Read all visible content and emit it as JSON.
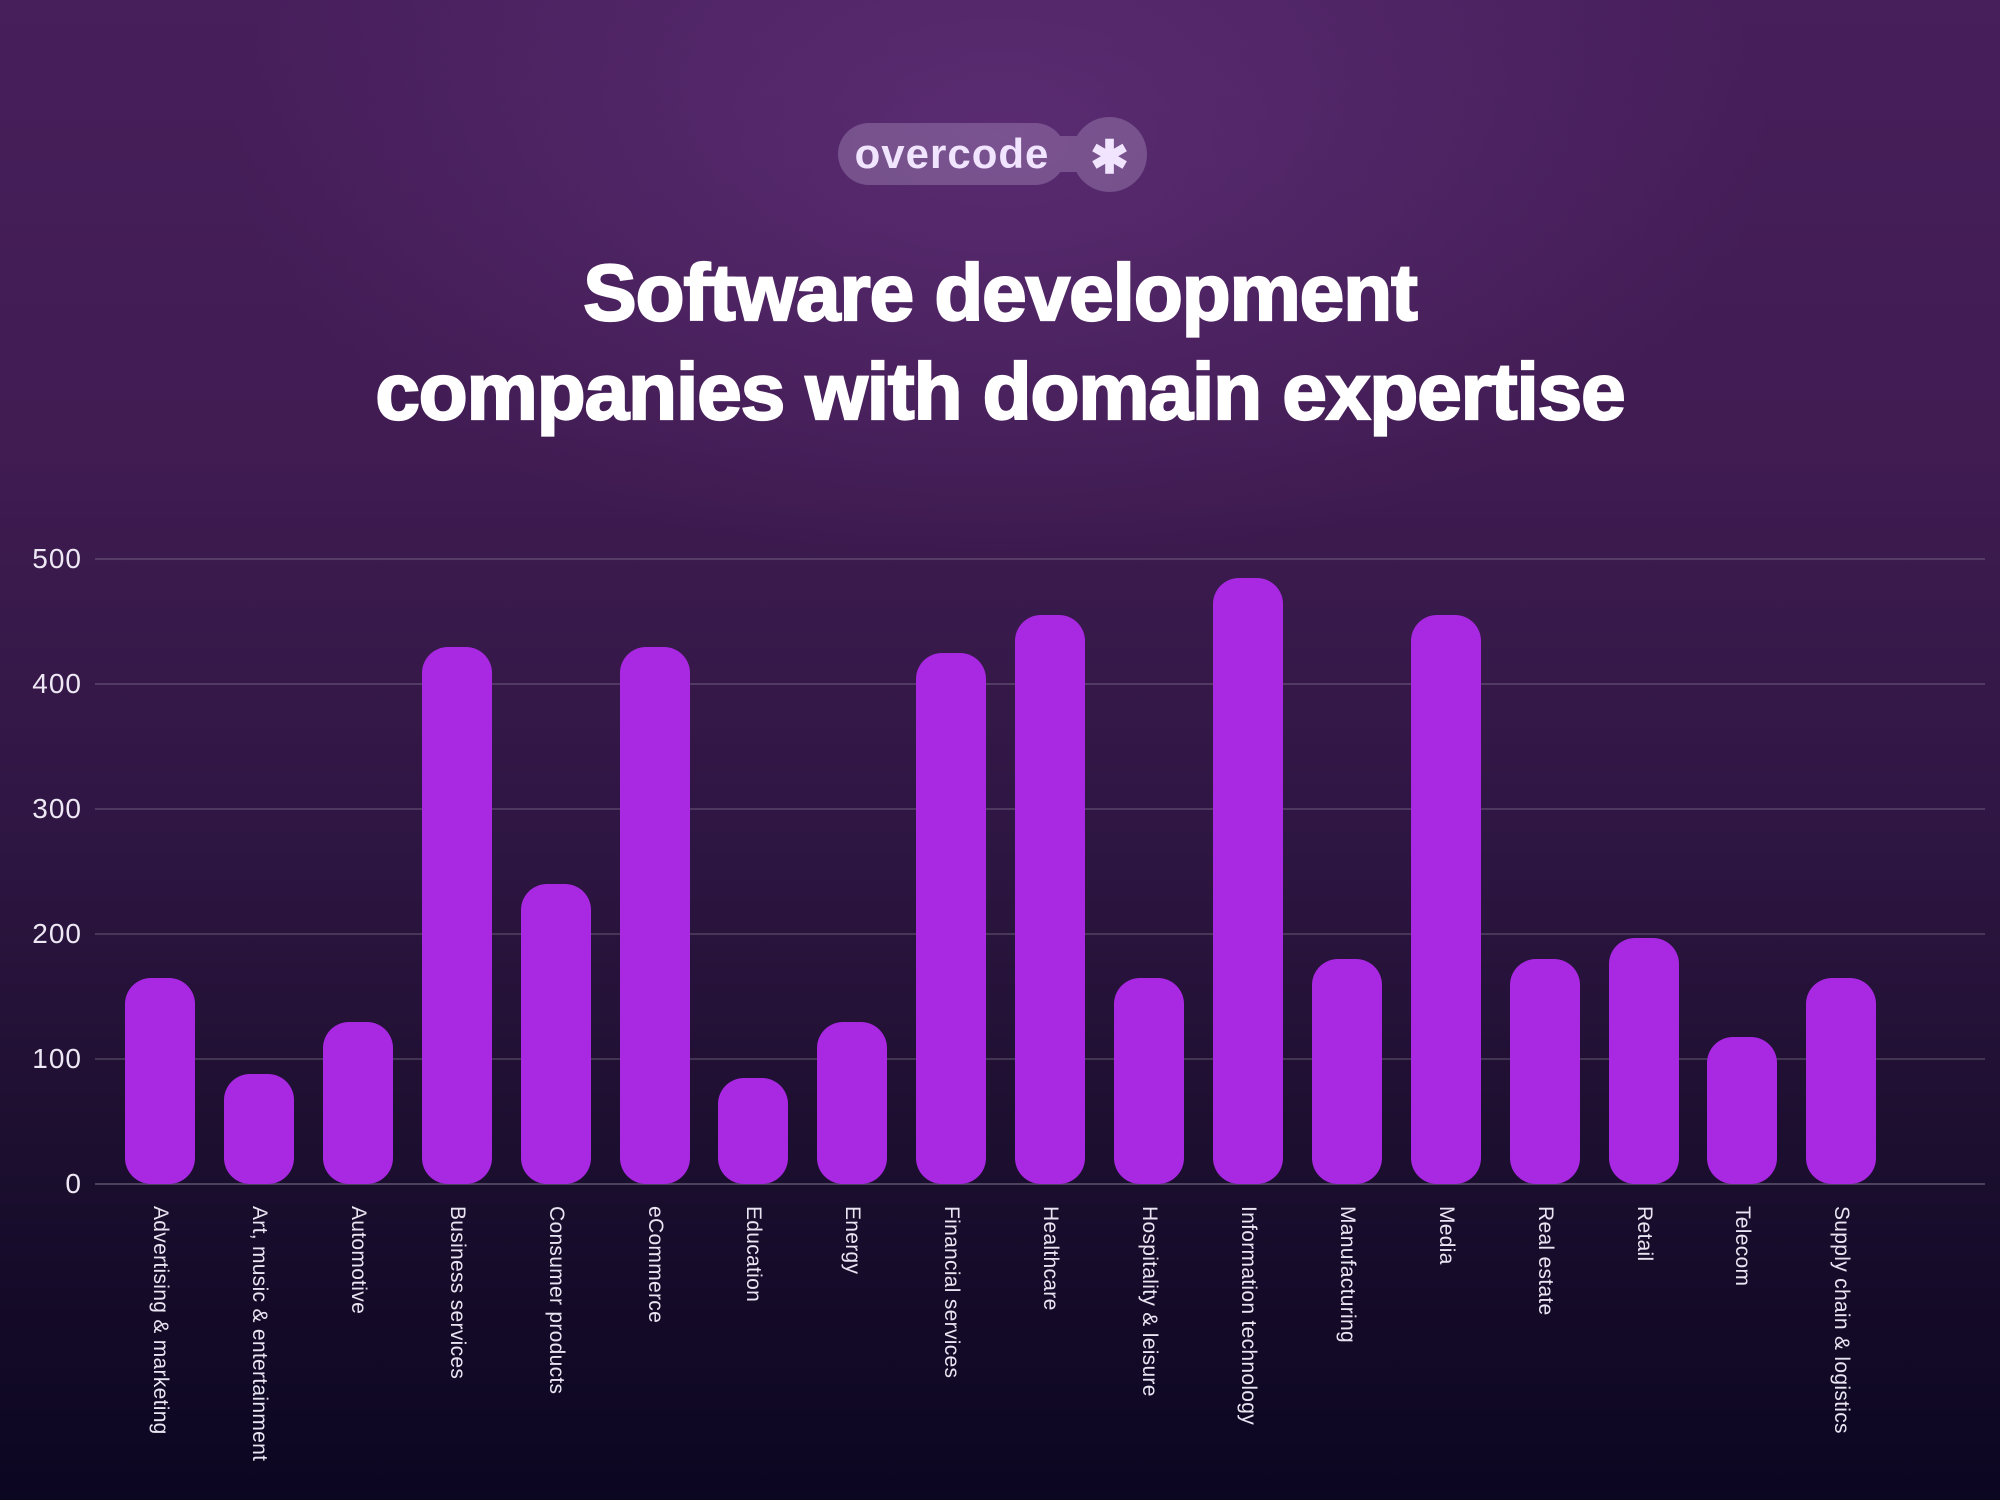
{
  "badge": {
    "brand": "overcode",
    "asterisk": "✱"
  },
  "title": {
    "line1": "Software development",
    "line2": "companies with domain expertise"
  },
  "chart_data": {
    "type": "bar",
    "title": "Software development companies with domain expertise",
    "categories": [
      "Advertising & marketing",
      "Art, music & entertainment",
      "Automotive",
      "Business services",
      "Consumer products",
      "eCommerce",
      "Education",
      "Energy",
      "Financial services",
      "Healthcare",
      "Hospitality & leisure",
      "Information technology",
      "Manufacturing",
      "Media",
      "Real estate",
      "Retail",
      "Telecom",
      "Supply chain & logistics"
    ],
    "values": [
      165,
      88,
      130,
      430,
      240,
      430,
      85,
      130,
      425,
      455,
      165,
      485,
      180,
      455,
      180,
      197,
      118,
      165
    ],
    "xlabel": "",
    "ylabel": "",
    "ylim": [
      0,
      500
    ],
    "yticks": [
      0,
      100,
      200,
      300,
      400,
      500
    ],
    "grid": true,
    "legend_position": "none",
    "bar_color": "#A928E2"
  },
  "colors": {
    "bar": "#A928E2",
    "background_top": "#471F5B",
    "background_bottom": "#0B0621",
    "badge_fill": "#6F4C86",
    "text": "#FFFFFF",
    "axis_text": "#EDE8F4"
  }
}
